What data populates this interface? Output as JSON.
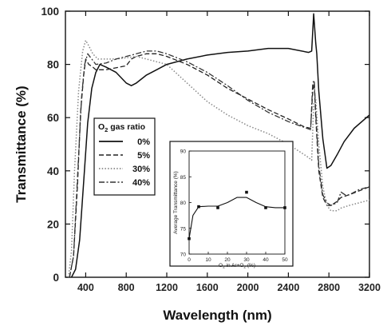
{
  "chart_data": [
    {
      "type": "line",
      "title": "",
      "xlabel": "Wavelength  (nm)",
      "ylabel": "Transmittance  (%)",
      "xlim": [
        200,
        3200
      ],
      "ylim": [
        0,
        100
      ],
      "x_ticks": [
        400,
        800,
        1200,
        1600,
        2000,
        2400,
        2800,
        3200
      ],
      "y_ticks": [
        0,
        20,
        40,
        60,
        80,
        100
      ],
      "grid": false,
      "legend": {
        "title_prefix": "O",
        "title_sub": "2",
        "title_suffix": " gas ratio",
        "position": "middle-left"
      },
      "series": [
        {
          "name": "0%",
          "style": "solid",
          "x": [
            260,
            300,
            340,
            380,
            420,
            460,
            500,
            540,
            600,
            700,
            800,
            850,
            900,
            1000,
            1100,
            1200,
            1400,
            1600,
            1800,
            2000,
            2200,
            2400,
            2600,
            2630,
            2650,
            2670,
            2680,
            2700,
            2740,
            2780,
            2820,
            2880,
            2950,
            3050,
            3200
          ],
          "y": [
            0,
            3,
            14,
            36,
            58,
            71,
            77,
            80,
            79,
            77,
            73,
            72,
            73,
            76,
            78,
            80,
            82,
            83.5,
            84.5,
            85,
            86,
            86,
            84.5,
            85,
            99,
            88,
            84,
            70,
            52,
            41,
            42,
            46,
            51,
            56,
            61
          ]
        },
        {
          "name": "5%",
          "style": "dashed",
          "x": [
            240,
            280,
            320,
            350,
            380,
            400,
            430,
            470,
            500,
            600,
            800,
            850,
            900,
            1000,
            1100,
            1200,
            1400,
            1600,
            1800,
            2000,
            2200,
            2400,
            2560,
            2620,
            2640,
            2655,
            2670,
            2700,
            2740,
            2780,
            2820,
            2880,
            2920,
            3000,
            3100,
            3200
          ],
          "y": [
            0,
            8,
            35,
            62,
            76,
            82,
            80,
            79,
            78,
            78,
            79.5,
            82,
            83,
            84,
            84,
            83,
            80,
            76,
            71,
            67,
            63,
            59.5,
            56.5,
            56,
            70,
            73,
            60,
            40,
            30,
            27,
            27,
            28.5,
            30,
            31,
            32.5,
            34
          ]
        },
        {
          "name": "30%",
          "style": "dotted",
          "x": [
            230,
            260,
            290,
            330,
            370,
            400,
            430,
            470,
            520,
            600,
            700,
            800,
            900,
            1000,
            1100,
            1200,
            1400,
            1600,
            1800,
            2000,
            2200,
            2400,
            2600,
            2630,
            2650,
            2670,
            2700,
            2740,
            2780,
            2820,
            2880,
            2920,
            3000,
            3100,
            3200
          ],
          "y": [
            0,
            10,
            40,
            70,
            85,
            89,
            87,
            84,
            82,
            82,
            82,
            82.5,
            83,
            82,
            81,
            80,
            73,
            66,
            61,
            57,
            54,
            50,
            45,
            44,
            65,
            67,
            50,
            34,
            27,
            25,
            25,
            26,
            27,
            28,
            29
          ]
        },
        {
          "name": "40%",
          "style": "dashdot",
          "x": [
            240,
            280,
            320,
            360,
            390,
            420,
            460,
            500,
            600,
            700,
            800,
            900,
            1000,
            1100,
            1200,
            1400,
            1600,
            1800,
            2000,
            2200,
            2400,
            2580,
            2620,
            2640,
            2655,
            2670,
            2700,
            2740,
            2780,
            2820,
            2880,
            2920,
            2960,
            3000,
            3100,
            3200
          ],
          "y": [
            0,
            8,
            38,
            68,
            80,
            84,
            82,
            80,
            80.5,
            82,
            83,
            84,
            85,
            85,
            84,
            81,
            77,
            72,
            66.5,
            62,
            58.5,
            56,
            55.5,
            73,
            74,
            62,
            42,
            31,
            28,
            27,
            28,
            32,
            31,
            31,
            33,
            34
          ]
        }
      ]
    },
    {
      "type": "scatter",
      "title": "",
      "xlabel_parts": [
        "O",
        "2",
        " in Ar+O",
        "2",
        " (%)"
      ],
      "ylabel": "Average Transmittance  (%)",
      "xlim": [
        0,
        50
      ],
      "ylim": [
        70,
        90
      ],
      "x_ticks": [
        0,
        10,
        20,
        30,
        40,
        50
      ],
      "y_ticks": [
        70,
        75,
        80,
        85,
        90
      ],
      "points": {
        "x": [
          0,
          5,
          15,
          30,
          40,
          50
        ],
        "y": [
          73,
          79.2,
          79,
          82,
          79,
          79
        ]
      },
      "fit_curve": {
        "x": [
          0,
          2,
          5,
          10,
          15,
          20,
          25,
          30,
          35,
          40,
          45,
          50
        ],
        "y": [
          73,
          77.5,
          79.2,
          79.3,
          79.3,
          80,
          81,
          81,
          80,
          79.2,
          79,
          79
        ]
      }
    }
  ]
}
